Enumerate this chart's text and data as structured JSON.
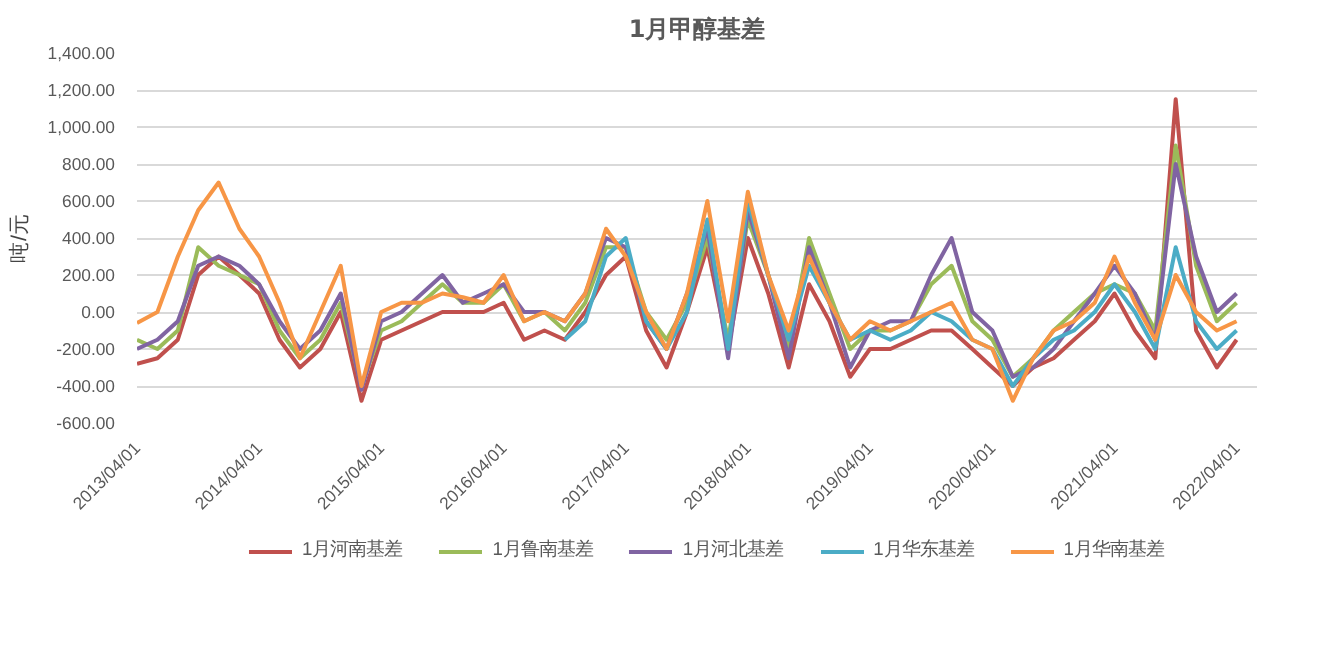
{
  "chart_data": {
    "type": "line",
    "title": "1月甲醇基差",
    "ylabel": "吨/元",
    "x": [
      "2013-04",
      "2013-06",
      "2013-08",
      "2013-10",
      "2013-12",
      "2014-02",
      "2014-04",
      "2014-06",
      "2014-08",
      "2014-10",
      "2014-12",
      "2015-02",
      "2015-04",
      "2015-06",
      "2015-08",
      "2015-10",
      "2015-12",
      "2016-02",
      "2016-04",
      "2016-06",
      "2016-08",
      "2016-10",
      "2016-12",
      "2017-02",
      "2017-04",
      "2017-06",
      "2017-08",
      "2017-10",
      "2017-12",
      "2018-02",
      "2018-04",
      "2018-06",
      "2018-08",
      "2018-10",
      "2018-12",
      "2019-02",
      "2019-04",
      "2019-06",
      "2019-08",
      "2019-10",
      "2019-12",
      "2020-02",
      "2020-04",
      "2020-06",
      "2020-08",
      "2020-10",
      "2020-12",
      "2021-02",
      "2021-04",
      "2021-06",
      "2021-08",
      "2021-10",
      "2021-12",
      "2022-02",
      "2022-04"
    ],
    "series": [
      {
        "name": "1月河南基差",
        "color": "#c0504d",
        "values": [
          -280,
          -250,
          -150,
          200,
          300,
          200,
          100,
          -150,
          -300,
          -200,
          0,
          -480,
          -150,
          -100,
          -50,
          0,
          0,
          0,
          50,
          -150,
          -100,
          -150,
          0,
          200,
          300,
          -100,
          -300,
          0,
          350,
          -200,
          400,
          100,
          -300,
          150,
          -50,
          -350,
          -200,
          -200,
          -150,
          -100,
          -100,
          -200,
          -300,
          -400,
          -300,
          -250,
          -150,
          -50,
          100,
          -100,
          -250,
          1150,
          -100,
          -300,
          -150
        ]
      },
      {
        "name": "1月鲁南基差",
        "color": "#9bbb59",
        "values": [
          -150,
          -200,
          -100,
          350,
          250,
          200,
          150,
          -100,
          -250,
          -150,
          50,
          -400,
          -100,
          -50,
          50,
          150,
          50,
          50,
          150,
          -50,
          0,
          -100,
          50,
          350,
          350,
          0,
          -150,
          50,
          400,
          -150,
          500,
          200,
          -200,
          400,
          100,
          -200,
          -100,
          -100,
          -50,
          150,
          250,
          -50,
          -150,
          -350,
          -250,
          -100,
          0,
          100,
          150,
          100,
          -100,
          900,
          250,
          -50,
          50
        ]
      },
      {
        "name": "1月河北基差",
        "color": "#8064a2",
        "values": [
          -200,
          -150,
          -50,
          250,
          300,
          250,
          150,
          -50,
          -200,
          -100,
          100,
          -420,
          -50,
          0,
          100,
          200,
          50,
          100,
          150,
          0,
          0,
          -50,
          100,
          400,
          350,
          -50,
          -200,
          100,
          450,
          -250,
          550,
          200,
          -250,
          350,
          50,
          -300,
          -100,
          -50,
          -50,
          200,
          400,
          0,
          -100,
          -350,
          -300,
          -200,
          -50,
          100,
          250,
          100,
          -150,
          800,
          300,
          0,
          100
        ]
      },
      {
        "name": "1月华东基差",
        "color": "#4bacc6",
        "values": [
          null,
          null,
          null,
          null,
          null,
          null,
          null,
          null,
          null,
          null,
          null,
          null,
          null,
          null,
          null,
          null,
          null,
          null,
          null,
          null,
          null,
          -150,
          -50,
          300,
          400,
          -50,
          -200,
          0,
          500,
          -200,
          600,
          200,
          -150,
          250,
          50,
          -150,
          -100,
          -150,
          -100,
          0,
          -50,
          -150,
          -200,
          -400,
          -250,
          -150,
          -100,
          0,
          150,
          0,
          -200,
          350,
          -50,
          -200,
          -100
        ]
      },
      {
        "name": "1月华南基差",
        "color": "#f79646",
        "values": [
          -60,
          0,
          300,
          550,
          700,
          450,
          300,
          50,
          -250,
          0,
          250,
          -400,
          0,
          50,
          50,
          100,
          80,
          50,
          200,
          -50,
          0,
          -50,
          100,
          450,
          300,
          0,
          -200,
          100,
          600,
          -50,
          650,
          200,
          -100,
          300,
          50,
          -150,
          -50,
          -100,
          -50,
          0,
          50,
          -150,
          -200,
          -480,
          -250,
          -100,
          -50,
          50,
          300,
          50,
          -150,
          200,
          0,
          -100,
          -50
        ]
      }
    ],
    "xlim": [
      "2013-04-01",
      "2022-06-01"
    ],
    "xticks": [
      {
        "value": "2013-04-01",
        "label": "2013/04/01"
      },
      {
        "value": "2014-04-01",
        "label": "2014/04/01"
      },
      {
        "value": "2015-04-01",
        "label": "2015/04/01"
      },
      {
        "value": "2016-04-01",
        "label": "2016/04/01"
      },
      {
        "value": "2017-04-01",
        "label": "2017/04/01"
      },
      {
        "value": "2018-04-01",
        "label": "2018/04/01"
      },
      {
        "value": "2019-04-01",
        "label": "2019/04/01"
      },
      {
        "value": "2020-04-01",
        "label": "2020/04/01"
      },
      {
        "value": "2021-04-01",
        "label": "2021/04/01"
      },
      {
        "value": "2022-04-01",
        "label": "2022/04/01"
      }
    ],
    "ylim": [
      -600,
      1400
    ],
    "yticks": [
      {
        "value": -600,
        "label": "-600.00"
      },
      {
        "value": -400,
        "label": "-400.00"
      },
      {
        "value": -200,
        "label": "-200.00"
      },
      {
        "value": 0,
        "label": "0.00"
      },
      {
        "value": 200,
        "label": "200.00"
      },
      {
        "value": 400,
        "label": "400.00"
      },
      {
        "value": 600,
        "label": "600.00"
      },
      {
        "value": 800,
        "label": "800.00"
      },
      {
        "value": 1000,
        "label": "1,000.00"
      },
      {
        "value": 1200,
        "label": "1,200.00"
      },
      {
        "value": 1400,
        "label": "1,400.00"
      }
    ],
    "grid": "y",
    "legend": "bottom",
    "line_style": "solid",
    "marker": "none"
  }
}
